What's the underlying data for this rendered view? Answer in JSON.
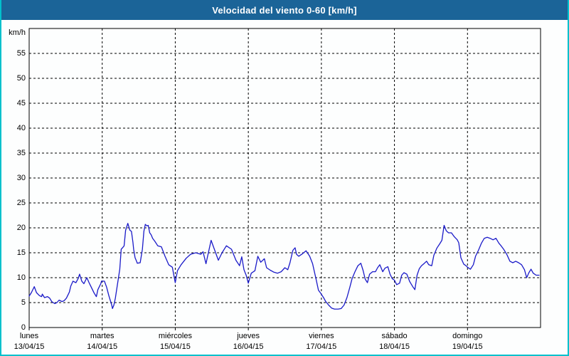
{
  "window": {
    "title": "Velocidad del viento 0-60 [km/h]"
  },
  "colors": {
    "title_bg": "#1b6498",
    "title_fg": "#ffffff",
    "frame_border": "#00c0cc",
    "plot_bg": "#fdfefe",
    "grid": "#000000",
    "line": "#1a1ac8",
    "label": "#000000"
  },
  "chart_data": {
    "type": "line",
    "title": "Velocidad del viento 0-60 [km/h]",
    "ylabel": "km/h",
    "xlabel": "",
    "ylim": [
      0,
      60
    ],
    "yticks": [
      0,
      5,
      10,
      15,
      20,
      25,
      30,
      35,
      40,
      45,
      50,
      55
    ],
    "grid": {
      "horizontal": "dashed",
      "vertical": "dashed"
    },
    "legend_position": "none",
    "x_axis": {
      "span_days": 7,
      "day_labels": [
        {
          "name": "lunes",
          "date": "13/04/15"
        },
        {
          "name": "martes",
          "date": "14/04/15"
        },
        {
          "name": "miércoles",
          "date": "15/04/15"
        },
        {
          "name": "jueves",
          "date": "16/04/15"
        },
        {
          "name": "viernes",
          "date": "17/04/15"
        },
        {
          "name": "sábado",
          "date": "18/04/15"
        },
        {
          "name": "domingo",
          "date": "19/04/15"
        }
      ]
    },
    "series": [
      {
        "name": "Velocidad del viento [km/h]",
        "points_day_kmh": [
          [
            0.0,
            6.3
          ],
          [
            0.03,
            7.0
          ],
          [
            0.07,
            8.2
          ],
          [
            0.1,
            7.0
          ],
          [
            0.14,
            6.4
          ],
          [
            0.17,
            6.2
          ],
          [
            0.18,
            6.7
          ],
          [
            0.21,
            6.0
          ],
          [
            0.25,
            6.2
          ],
          [
            0.28,
            5.9
          ],
          [
            0.31,
            5.2
          ],
          [
            0.35,
            4.8
          ],
          [
            0.38,
            5.0
          ],
          [
            0.41,
            5.5
          ],
          [
            0.45,
            5.2
          ],
          [
            0.48,
            5.4
          ],
          [
            0.51,
            5.9
          ],
          [
            0.55,
            7.1
          ],
          [
            0.57,
            8.3
          ],
          [
            0.6,
            9.3
          ],
          [
            0.64,
            9.0
          ],
          [
            0.67,
            9.8
          ],
          [
            0.69,
            10.7
          ],
          [
            0.72,
            9.3
          ],
          [
            0.75,
            8.8
          ],
          [
            0.79,
            10.0
          ],
          [
            0.82,
            9.0
          ],
          [
            0.85,
            8.1
          ],
          [
            0.89,
            6.9
          ],
          [
            0.92,
            6.2
          ],
          [
            0.94,
            7.6
          ],
          [
            0.98,
            8.8
          ],
          [
            0.99,
            9.3
          ],
          [
            1.03,
            9.3
          ],
          [
            1.06,
            8.1
          ],
          [
            1.09,
            6.4
          ],
          [
            1.13,
            4.5
          ],
          [
            1.14,
            3.8
          ],
          [
            1.16,
            4.5
          ],
          [
            1.18,
            5.9
          ],
          [
            1.21,
            8.8
          ],
          [
            1.24,
            11.7
          ],
          [
            1.26,
            15.7
          ],
          [
            1.29,
            16.2
          ],
          [
            1.3,
            16.4
          ],
          [
            1.32,
            19.5
          ],
          [
            1.35,
            20.9
          ],
          [
            1.38,
            19.5
          ],
          [
            1.4,
            19.3
          ],
          [
            1.42,
            17.1
          ],
          [
            1.43,
            15.7
          ],
          [
            1.45,
            14.0
          ],
          [
            1.47,
            13.3
          ],
          [
            1.48,
            12.9
          ],
          [
            1.52,
            13.0
          ],
          [
            1.55,
            15.7
          ],
          [
            1.57,
            19.3
          ],
          [
            1.59,
            20.7
          ],
          [
            1.61,
            20.4
          ],
          [
            1.63,
            20.5
          ],
          [
            1.65,
            19.0
          ],
          [
            1.67,
            18.6
          ],
          [
            1.69,
            17.9
          ],
          [
            1.72,
            17.3
          ],
          [
            1.76,
            16.4
          ],
          [
            1.81,
            16.2
          ],
          [
            1.86,
            14.3
          ],
          [
            1.91,
            12.6
          ],
          [
            1.96,
            12.1
          ],
          [
            2.0,
            9.0
          ],
          [
            2.03,
            11.4
          ],
          [
            2.08,
            12.6
          ],
          [
            2.15,
            13.9
          ],
          [
            2.21,
            14.7
          ],
          [
            2.28,
            15.0
          ],
          [
            2.35,
            14.7
          ],
          [
            2.38,
            15.2
          ],
          [
            2.42,
            12.8
          ],
          [
            2.49,
            17.5
          ],
          [
            2.54,
            15.5
          ],
          [
            2.59,
            13.5
          ],
          [
            2.64,
            15.0
          ],
          [
            2.7,
            16.4
          ],
          [
            2.77,
            15.7
          ],
          [
            2.83,
            13.5
          ],
          [
            2.88,
            12.4
          ],
          [
            2.91,
            14.2
          ],
          [
            2.94,
            11.6
          ],
          [
            2.97,
            10.5
          ],
          [
            3.0,
            8.9
          ],
          [
            3.04,
            10.9
          ],
          [
            3.09,
            11.4
          ],
          [
            3.13,
            14.3
          ],
          [
            3.17,
            13.1
          ],
          [
            3.22,
            13.8
          ],
          [
            3.25,
            12.0
          ],
          [
            3.3,
            11.5
          ],
          [
            3.35,
            11.1
          ],
          [
            3.4,
            10.9
          ],
          [
            3.45,
            11.2
          ],
          [
            3.5,
            12.0
          ],
          [
            3.54,
            11.6
          ],
          [
            3.57,
            13.0
          ],
          [
            3.61,
            15.5
          ],
          [
            3.64,
            16.0
          ],
          [
            3.66,
            14.7
          ],
          [
            3.69,
            14.3
          ],
          [
            3.74,
            14.8
          ],
          [
            3.79,
            15.4
          ],
          [
            3.84,
            14.3
          ],
          [
            3.88,
            12.8
          ],
          [
            3.93,
            9.5
          ],
          [
            3.96,
            7.5
          ],
          [
            3.99,
            6.9
          ],
          [
            4.03,
            6.0
          ],
          [
            4.06,
            5.2
          ],
          [
            4.1,
            4.5
          ],
          [
            4.14,
            3.9
          ],
          [
            4.18,
            3.7
          ],
          [
            4.23,
            3.7
          ],
          [
            4.27,
            3.8
          ],
          [
            4.31,
            4.5
          ],
          [
            4.35,
            6.0
          ],
          [
            4.39,
            8.1
          ],
          [
            4.42,
            9.8
          ],
          [
            4.46,
            11.2
          ],
          [
            4.5,
            12.4
          ],
          [
            4.54,
            12.9
          ],
          [
            4.57,
            11.5
          ],
          [
            4.6,
            9.7
          ],
          [
            4.63,
            9.0
          ],
          [
            4.66,
            10.7
          ],
          [
            4.7,
            11.2
          ],
          [
            4.74,
            11.2
          ],
          [
            4.77,
            12.0
          ],
          [
            4.8,
            12.6
          ],
          [
            4.84,
            11.2
          ],
          [
            4.87,
            11.9
          ],
          [
            4.91,
            12.2
          ],
          [
            4.94,
            10.7
          ],
          [
            4.97,
            9.8
          ],
          [
            5.0,
            9.5
          ],
          [
            5.03,
            8.6
          ],
          [
            5.07,
            8.9
          ],
          [
            5.1,
            10.5
          ],
          [
            5.13,
            11.0
          ],
          [
            5.17,
            10.7
          ],
          [
            5.21,
            9.2
          ],
          [
            5.25,
            8.2
          ],
          [
            5.28,
            7.6
          ],
          [
            5.31,
            10.5
          ],
          [
            5.34,
            11.8
          ],
          [
            5.37,
            12.4
          ],
          [
            5.41,
            12.9
          ],
          [
            5.44,
            13.3
          ],
          [
            5.47,
            12.6
          ],
          [
            5.51,
            12.4
          ],
          [
            5.54,
            14.5
          ],
          [
            5.58,
            15.9
          ],
          [
            5.62,
            16.8
          ],
          [
            5.65,
            17.5
          ],
          [
            5.68,
            20.5
          ],
          [
            5.71,
            19.4
          ],
          [
            5.74,
            19.0
          ],
          [
            5.78,
            19.0
          ],
          [
            5.82,
            18.2
          ],
          [
            5.86,
            17.6
          ],
          [
            5.88,
            17.0
          ],
          [
            5.91,
            14.0
          ],
          [
            5.95,
            12.7
          ],
          [
            5.98,
            12.4
          ],
          [
            6.0,
            12.1
          ],
          [
            6.04,
            11.7
          ],
          [
            6.08,
            12.6
          ],
          [
            6.11,
            14.3
          ],
          [
            6.15,
            15.5
          ],
          [
            6.19,
            16.9
          ],
          [
            6.23,
            17.9
          ],
          [
            6.27,
            18.1
          ],
          [
            6.31,
            17.9
          ],
          [
            6.35,
            17.6
          ],
          [
            6.39,
            17.9
          ],
          [
            6.43,
            16.9
          ],
          [
            6.46,
            16.4
          ],
          [
            6.5,
            15.6
          ],
          [
            6.54,
            14.6
          ],
          [
            6.58,
            13.3
          ],
          [
            6.62,
            13.0
          ],
          [
            6.66,
            13.3
          ],
          [
            6.7,
            13.0
          ],
          [
            6.74,
            12.6
          ],
          [
            6.78,
            11.6
          ],
          [
            6.81,
            10.0
          ],
          [
            6.84,
            11.0
          ],
          [
            6.87,
            11.7
          ],
          [
            6.9,
            10.9
          ],
          [
            6.94,
            10.5
          ],
          [
            6.98,
            10.5
          ]
        ]
      }
    ]
  }
}
